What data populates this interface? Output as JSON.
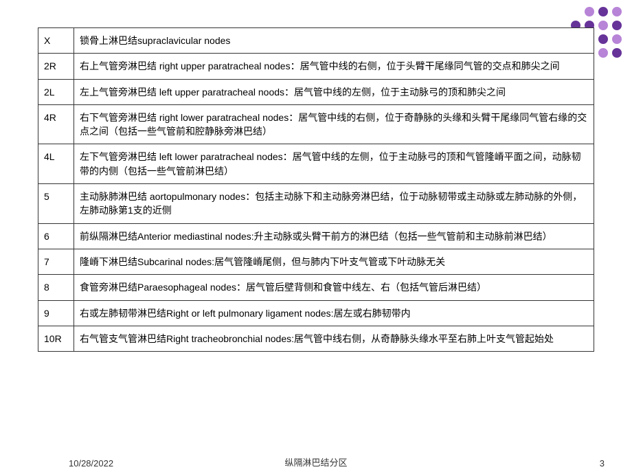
{
  "decoration": {
    "rows": [
      [
        "empty",
        "empty",
        "violet",
        "purple",
        "violet"
      ],
      [
        "empty",
        "purple",
        "purple",
        "violet",
        "purple"
      ],
      [
        "olive",
        "green",
        "olive",
        "purple",
        "violet"
      ],
      [
        "green",
        "olive",
        "green",
        "violet",
        "purple"
      ],
      [
        "olive",
        "green",
        "olive",
        "empty",
        "empty"
      ],
      [
        "green",
        "olive",
        "empty",
        "empty",
        "empty"
      ]
    ]
  },
  "table": {
    "rows": [
      {
        "code": "X",
        "desc": "锁骨上淋巴结supraclavicular nodes"
      },
      {
        "code": "2R",
        "desc": "右上气管旁淋巴结 right upper paratracheal nodes：居气管中线的右侧，位于头臂干尾缘同气管的交点和肺尖之间"
      },
      {
        "code": "2L",
        "desc": "左上气管旁淋巴结 left upper paratracheal noods：居气管中线的左侧，位于主动脉弓的顶和肺尖之间"
      },
      {
        "code": "4R",
        "desc": "右下气管旁淋巴结 right lower paratracheal nodes：居气管中线的右侧，位于奇静脉的头缘和头臂干尾缘同气管右缘的交点之间（包括一些气管前和腔静脉旁淋巴结）"
      },
      {
        "code": "4L",
        "desc": "左下气管旁淋巴结 left lower paratracheal nodes：居气管中线的左侧，位于主动脉弓的顶和气管隆嵴平面之间，动脉韧带的内侧（包括一些气管前淋巴结）"
      },
      {
        "code": "5",
        "desc": "主动脉肺淋巴结 aortopulmonary nodes：包括主动脉下和主动脉旁淋巴结，位于动脉韧带或主动脉或左肺动脉的外侧，左肺动脉第1支的近侧"
      },
      {
        "code": "6",
        "desc": "前纵隔淋巴结Anterior mediastinal nodes:升主动脉或头臂干前方的淋巴结（包括一些气管前和主动脉前淋巴结）"
      },
      {
        "code": "7",
        "desc": "隆嵴下淋巴结Subcarinal nodes:居气管隆嵴尾侧，但与肺内下叶支气管或下叶动脉无关"
      },
      {
        "code": "8",
        "desc": "食管旁淋巴结Paraesophageal nodes：居气管后壁背侧和食管中线左、右（包括气管后淋巴结）"
      },
      {
        "code": "9",
        "desc": "右或左肺韧带淋巴结Right or left pulmonary ligament nodes:居左或右肺韧带内"
      },
      {
        "code": "10R",
        "desc": "右气管支气管淋巴结Right tracheobronchial nodes:居气管中线右侧，从奇静脉头缘水平至右肺上叶支气管起始处"
      }
    ]
  },
  "footer": {
    "date": "10/28/2022",
    "center": "纵隔淋巴结分区",
    "page": "3"
  }
}
